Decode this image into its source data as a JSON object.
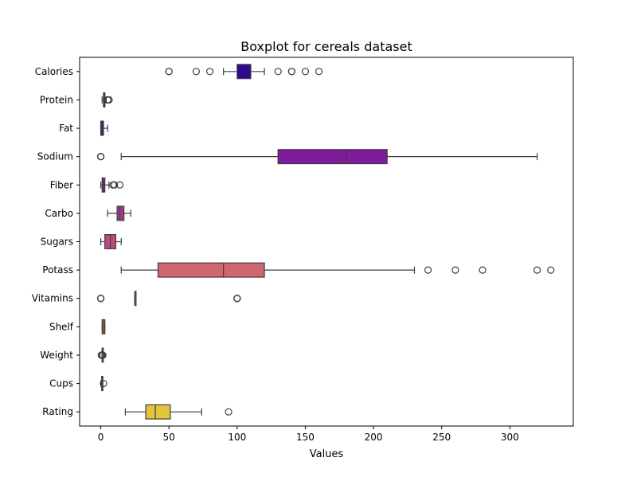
{
  "chart_data": {
    "type": "boxplot",
    "orientation": "horizontal",
    "title": "Boxplot for cereals dataset",
    "xlabel": "Values",
    "ylabel": "",
    "xlim": [
      -15.5,
      346.5
    ],
    "xticks": [
      0,
      50,
      100,
      150,
      200,
      250,
      300
    ],
    "grid": false,
    "legend": "none",
    "categories": [
      "Calories",
      "Protein",
      "Fat",
      "Sodium",
      "Fiber",
      "Carbo",
      "Sugars",
      "Potass",
      "Vitamins",
      "Shelf",
      "Weight",
      "Cups",
      "Rating"
    ],
    "boxes": [
      {
        "category": "Calories",
        "whisker_low": 90,
        "q1": 100,
        "median": 110,
        "q3": 110,
        "whisker_high": 120,
        "outliers": [
          50,
          50,
          70,
          80,
          130,
          140,
          140,
          150,
          160
        ],
        "color": "#2f0a8f"
      },
      {
        "category": "Protein",
        "whisker_low": 1,
        "q1": 2,
        "median": 3,
        "q3": 3,
        "whisker_high": 4,
        "outliers": [
          5,
          6,
          6
        ],
        "color": "#3a0ea0"
      },
      {
        "category": "Fat",
        "whisker_low": 0,
        "q1": 0,
        "median": 1,
        "q3": 2,
        "whisker_high": 5,
        "outliers": [],
        "color": "#530ca4"
      },
      {
        "category": "Sodium",
        "whisker_low": 15,
        "q1": 130,
        "median": 180,
        "q3": 210,
        "whisker_high": 320,
        "outliers": [
          0,
          0,
          0
        ],
        "color": "#7e1c9b"
      },
      {
        "category": "Fiber",
        "whisker_low": 0,
        "q1": 1,
        "median": 2,
        "q3": 3,
        "whisker_high": 6,
        "outliers": [
          9,
          10,
          14
        ],
        "color": "#902596"
      },
      {
        "category": "Carbo",
        "whisker_low": 5,
        "q1": 12,
        "median": 14,
        "q3": 17,
        "whisker_high": 22,
        "outliers": [],
        "color": "#a63891"
      },
      {
        "category": "Sugars",
        "whisker_low": 0,
        "q1": 3,
        "median": 7,
        "q3": 11,
        "whisker_high": 15,
        "outliers": [],
        "color": "#b94a82"
      },
      {
        "category": "Potass",
        "whisker_low": 15,
        "q1": 42,
        "median": 90,
        "q3": 120,
        "whisker_high": 230,
        "outliers": [
          240,
          260,
          280,
          320,
          330
        ],
        "color": "#d06670"
      },
      {
        "category": "Vitamins",
        "whisker_low": 25,
        "q1": 25,
        "median": 25,
        "q3": 25,
        "whisker_high": 25,
        "outliers": [
          0,
          0,
          0,
          100,
          100,
          100
        ],
        "color": "#d9745f"
      },
      {
        "category": "Shelf",
        "whisker_low": 1,
        "q1": 1,
        "median": 2,
        "q3": 3,
        "whisker_high": 3,
        "outliers": [],
        "color": "#e4824f"
      },
      {
        "category": "Weight",
        "whisker_low": 1,
        "q1": 1,
        "median": 1,
        "q3": 1,
        "whisker_high": 1,
        "outliers": [
          0.5,
          0.5,
          0.83,
          1.3,
          1.33,
          1.5
        ],
        "color": "#f09a3a"
      },
      {
        "category": "Cups",
        "whisker_low": 0.25,
        "q1": 0.67,
        "median": 0.75,
        "q3": 1,
        "whisker_high": 1.5,
        "outliers": [
          2
        ],
        "color": "#f6be33"
      },
      {
        "category": "Rating",
        "whisker_low": 18,
        "q1": 33,
        "median": 40,
        "q3": 51,
        "whisker_high": 74,
        "outliers": [
          93.7
        ],
        "color": "#e3c43d"
      }
    ]
  }
}
